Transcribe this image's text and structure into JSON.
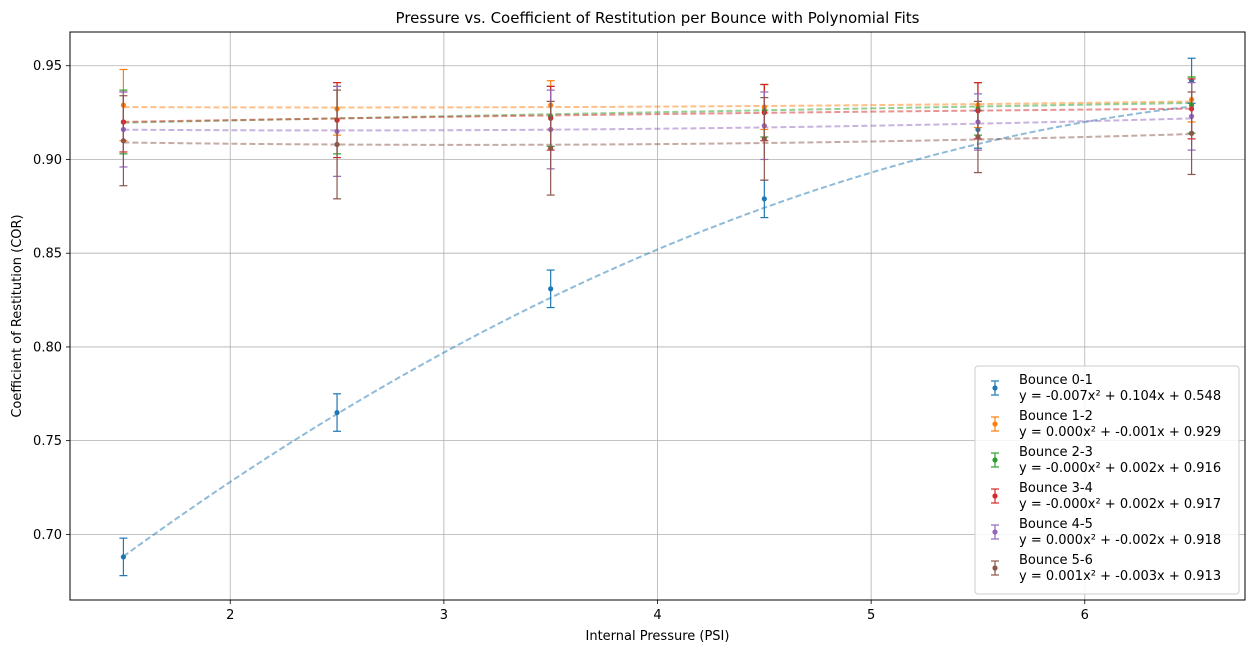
{
  "chart_data": {
    "type": "scatter",
    "title": "Pressure vs. Coefficient of Restitution per Bounce with Polynomial Fits",
    "xlabel": "Internal Pressure (PSI)",
    "ylabel": "Coefficient of Restitution (COR)",
    "xlim": [
      1.25,
      6.75
    ],
    "ylim": [
      0.665,
      0.968
    ],
    "xticks": [
      "2",
      "3",
      "4",
      "5",
      "6"
    ],
    "yticks": [
      "0.70",
      "0.75",
      "0.80",
      "0.85",
      "0.90",
      "0.95"
    ],
    "grid": true,
    "legend_position": "lower-right",
    "x": [
      1.5,
      2.5,
      3.5,
      4.5,
      5.5,
      6.5
    ],
    "series": [
      {
        "name": "Bounce 0-1",
        "equation": "y = -0.007x² + 0.104x + 0.548",
        "color": "#1f77b4",
        "values": [
          0.688,
          0.765,
          0.831,
          0.879,
          0.916,
          0.942
        ],
        "errors": [
          0.01,
          0.01,
          0.01,
          0.01,
          0.01,
          0.012
        ],
        "fit": [
          -0.007,
          0.104,
          0.548
        ]
      },
      {
        "name": "Bounce 1-2",
        "equation": "y = 0.000x² + -0.001x + 0.929",
        "color": "#ff7f0e",
        "values": [
          0.929,
          0.927,
          0.929,
          0.928,
          0.929,
          0.932
        ],
        "errors": [
          0.019,
          0.014,
          0.013,
          0.012,
          0.012,
          0.012
        ],
        "fit": [
          0.0002,
          -0.001,
          0.929
        ]
      },
      {
        "name": "Bounce 2-3",
        "equation": "y = -0.000x² + 0.002x + 0.916",
        "color": "#2ca02c",
        "values": [
          0.92,
          0.921,
          0.923,
          0.926,
          0.927,
          0.929
        ],
        "errors": [
          0.017,
          0.018,
          0.016,
          0.014,
          0.014,
          0.015
        ],
        "fit": [
          -5e-05,
          0.0025,
          0.916
        ]
      },
      {
        "name": "Bounce 3-4",
        "equation": "y = -0.000x² + 0.002x + 0.917",
        "color": "#d62728",
        "values": [
          0.92,
          0.921,
          0.922,
          0.925,
          0.926,
          0.927
        ],
        "errors": [
          0.016,
          0.02,
          0.017,
          0.015,
          0.015,
          0.016
        ],
        "fit": [
          -0.0001,
          0.0022,
          0.917
        ]
      },
      {
        "name": "Bounce 4-5",
        "equation": "y = 0.000x² + -0.002x + 0.918",
        "color": "#9467bd",
        "values": [
          0.916,
          0.915,
          0.916,
          0.918,
          0.92,
          0.923
        ],
        "errors": [
          0.02,
          0.024,
          0.021,
          0.018,
          0.015,
          0.018
        ],
        "fit": [
          0.0004,
          -0.002,
          0.918
        ]
      },
      {
        "name": "Bounce 5-6",
        "equation": "y = 0.001x² + -0.003x + 0.913",
        "color": "#8c564b",
        "values": [
          0.91,
          0.908,
          0.906,
          0.911,
          0.912,
          0.914
        ],
        "errors": [
          0.024,
          0.029,
          0.025,
          0.022,
          0.019,
          0.022
        ],
        "fit": [
          0.0005,
          -0.0031,
          0.9126
        ]
      }
    ]
  }
}
